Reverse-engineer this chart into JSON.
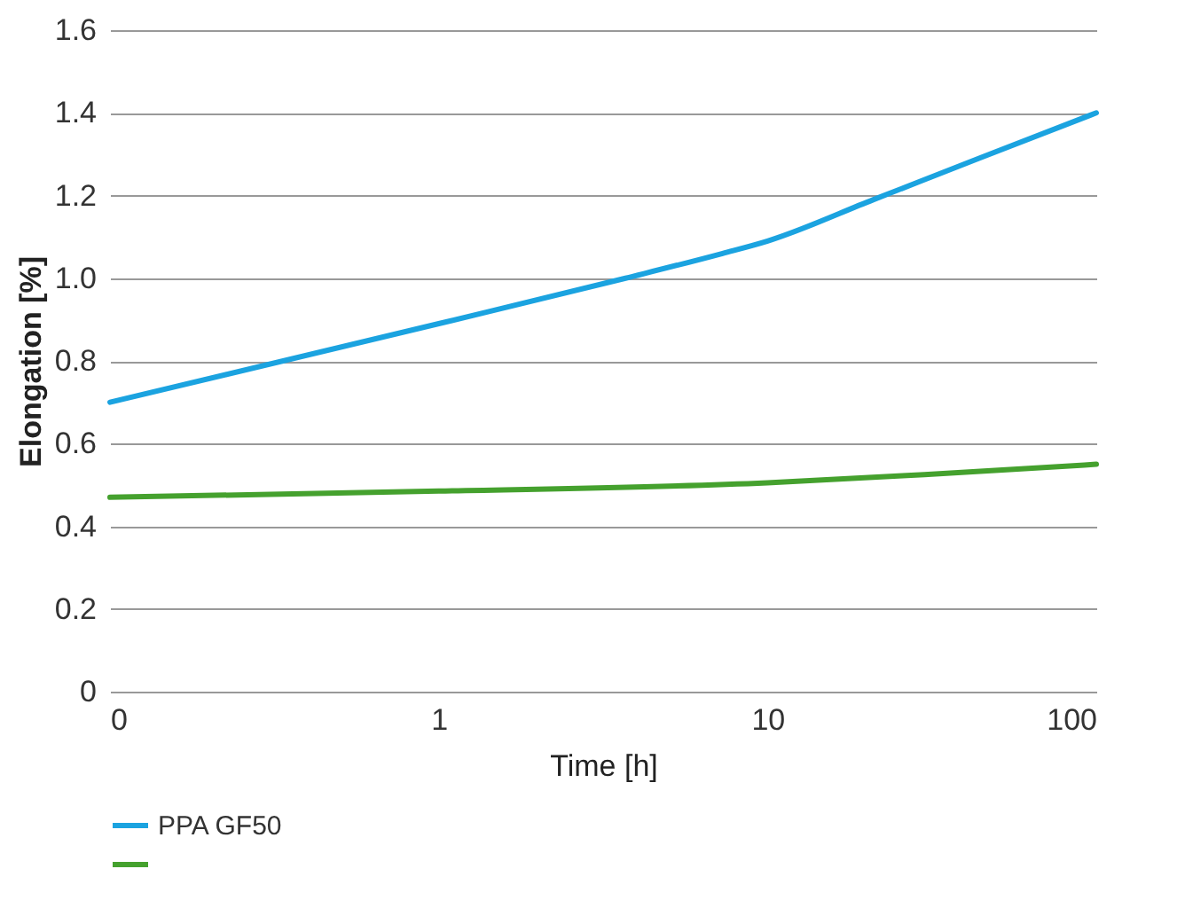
{
  "chart_data": {
    "type": "line",
    "xlabel": "Time [h]",
    "ylabel": "Elongation [%]",
    "log": "x",
    "xlim": [
      0.1,
      100
    ],
    "xticks": [
      {
        "value": 0.1,
        "label": "0"
      },
      1,
      10,
      100
    ],
    "ylim": [
      0,
      1.6
    ],
    "yticks": [
      0,
      0.2,
      0.4,
      0.6,
      0.8,
      {
        "value": 1,
        "label": "1.0"
      },
      1.2,
      1.4,
      1.6
    ],
    "grid": "y",
    "legend": "bottom",
    "line_style": "solid",
    "series": [
      {
        "name": "PPA GF50",
        "color": "#1ba3e0",
        "x": [
          0.1,
          1,
          3.7,
          7.3,
          10,
          21,
          44,
          100
        ],
        "values": [
          0.7,
          0.89,
          1.0,
          1.06,
          1.09,
          1.19,
          1.29,
          1.4
        ]
      },
      {
        "color": "#45a12e",
        "x": [
          0.1,
          1,
          10,
          30,
          100
        ],
        "values": [
          0.47,
          0.485,
          0.505,
          0.525,
          0.55
        ]
      }
    ]
  }
}
